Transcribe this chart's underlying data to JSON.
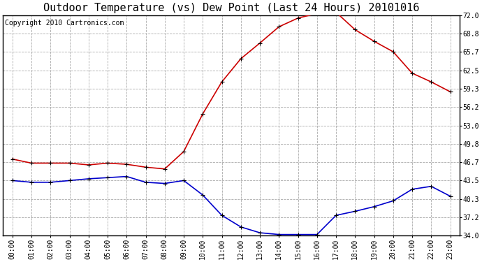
{
  "title": "Outdoor Temperature (vs) Dew Point (Last 24 Hours) 20101016",
  "copyright": "Copyright 2010 Cartronics.com",
  "hours": [
    "00:00",
    "01:00",
    "02:00",
    "03:00",
    "04:00",
    "05:00",
    "06:00",
    "07:00",
    "08:00",
    "09:00",
    "10:00",
    "11:00",
    "12:00",
    "13:00",
    "14:00",
    "15:00",
    "16:00",
    "17:00",
    "18:00",
    "19:00",
    "20:00",
    "21:00",
    "22:00",
    "23:00"
  ],
  "temp": [
    47.2,
    46.5,
    46.5,
    46.5,
    46.2,
    46.5,
    46.3,
    45.8,
    45.5,
    48.5,
    55.0,
    60.5,
    64.5,
    67.2,
    70.0,
    71.5,
    72.3,
    72.5,
    69.5,
    67.5,
    65.7,
    62.0,
    60.5,
    58.8
  ],
  "dew": [
    43.5,
    43.2,
    43.2,
    43.5,
    43.8,
    44.0,
    44.2,
    43.2,
    43.0,
    43.5,
    41.0,
    37.5,
    35.5,
    34.5,
    34.2,
    34.2,
    34.2,
    37.5,
    38.2,
    39.0,
    40.0,
    42.0,
    42.5,
    40.8
  ],
  "temp_color": "#cc0000",
  "dew_color": "#0000cc",
  "bg_color": "#ffffff",
  "plot_bg_color": "#ffffff",
  "grid_color": "#aaaaaa",
  "ylim_min": 34.0,
  "ylim_max": 72.0,
  "ytick_labels": [
    "34.0",
    "37.2",
    "40.3",
    "43.5",
    "46.7",
    "49.8",
    "53.0",
    "56.2",
    "59.3",
    "62.5",
    "65.7",
    "68.8",
    "72.0"
  ],
  "ytick_values": [
    34.0,
    37.2,
    40.3,
    43.5,
    46.7,
    49.8,
    53.0,
    56.2,
    59.3,
    62.5,
    65.7,
    68.8,
    72.0
  ],
  "title_fontsize": 11,
  "copyright_fontsize": 7,
  "tick_fontsize": 7,
  "marker": "+",
  "marker_size": 5,
  "line_width": 1.2
}
